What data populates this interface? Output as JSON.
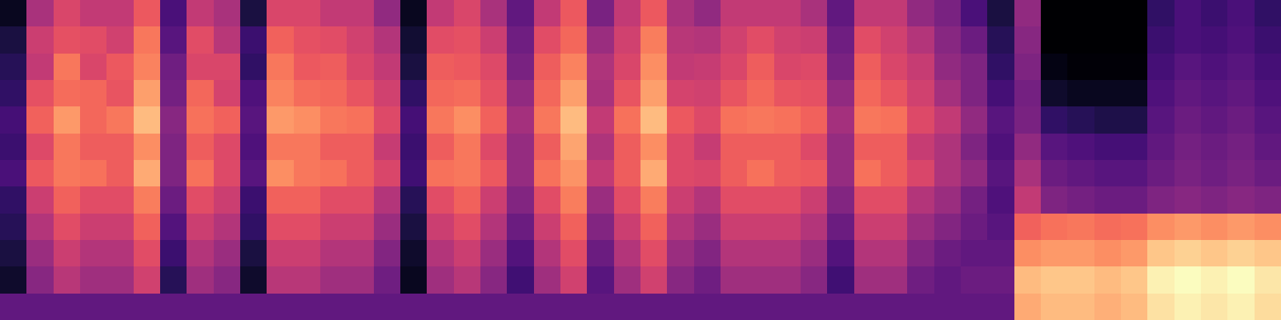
{
  "chart_data": {
    "type": "heatmap",
    "tick_labels": false,
    "cells": [
      [
        0.1,
        0.45,
        0.55,
        0.5,
        0.5,
        0.6,
        0.25,
        0.5,
        0.45,
        0.15,
        0.55,
        0.55,
        0.5,
        0.5,
        0.4,
        0.1,
        0.5,
        0.55,
        0.45,
        0.3,
        0.5,
        0.6,
        0.35,
        0.5,
        0.6,
        0.45,
        0.4,
        0.5,
        0.5,
        0.5,
        0.45,
        0.3,
        0.5,
        0.5,
        0.4,
        0.35,
        0.25,
        0.15,
        0.4,
        0.05,
        0.05,
        0.05,
        0.05,
        0.2,
        0.25,
        0.22,
        0.25,
        0.2
      ],
      [
        0.15,
        0.52,
        0.58,
        0.57,
        0.53,
        0.66,
        0.28,
        0.57,
        0.48,
        0.22,
        0.62,
        0.58,
        0.57,
        0.53,
        0.47,
        0.13,
        0.57,
        0.58,
        0.52,
        0.33,
        0.57,
        0.63,
        0.42,
        0.53,
        0.67,
        0.48,
        0.47,
        0.53,
        0.57,
        0.53,
        0.52,
        0.33,
        0.57,
        0.53,
        0.47,
        0.38,
        0.32,
        0.18,
        0.38,
        0.05,
        0.05,
        0.05,
        0.05,
        0.22,
        0.25,
        0.24,
        0.26,
        0.22
      ],
      [
        0.18,
        0.5,
        0.66,
        0.55,
        0.6,
        0.68,
        0.33,
        0.55,
        0.55,
        0.2,
        0.66,
        0.6,
        0.61,
        0.55,
        0.5,
        0.15,
        0.61,
        0.6,
        0.56,
        0.35,
        0.61,
        0.68,
        0.46,
        0.55,
        0.7,
        0.5,
        0.51,
        0.55,
        0.61,
        0.55,
        0.56,
        0.35,
        0.61,
        0.55,
        0.51,
        0.4,
        0.36,
        0.2,
        0.36,
        0.08,
        0.06,
        0.06,
        0.06,
        0.24,
        0.28,
        0.26,
        0.28,
        0.24
      ],
      [
        0.2,
        0.58,
        0.64,
        0.63,
        0.59,
        0.73,
        0.34,
        0.63,
        0.54,
        0.26,
        0.68,
        0.64,
        0.63,
        0.59,
        0.53,
        0.2,
        0.63,
        0.64,
        0.58,
        0.4,
        0.63,
        0.73,
        0.45,
        0.59,
        0.73,
        0.54,
        0.53,
        0.59,
        0.63,
        0.59,
        0.58,
        0.4,
        0.63,
        0.59,
        0.53,
        0.44,
        0.36,
        0.24,
        0.34,
        0.12,
        0.1,
        0.1,
        0.1,
        0.26,
        0.3,
        0.28,
        0.3,
        0.26
      ],
      [
        0.24,
        0.62,
        0.72,
        0.63,
        0.66,
        0.78,
        0.38,
        0.65,
        0.62,
        0.28,
        0.72,
        0.7,
        0.66,
        0.65,
        0.56,
        0.24,
        0.66,
        0.7,
        0.62,
        0.44,
        0.66,
        0.78,
        0.5,
        0.65,
        0.78,
        0.6,
        0.56,
        0.65,
        0.66,
        0.65,
        0.62,
        0.44,
        0.66,
        0.65,
        0.56,
        0.5,
        0.4,
        0.28,
        0.35,
        0.2,
        0.18,
        0.16,
        0.16,
        0.28,
        0.32,
        0.3,
        0.32,
        0.28
      ],
      [
        0.22,
        0.56,
        0.66,
        0.61,
        0.61,
        0.7,
        0.36,
        0.61,
        0.56,
        0.26,
        0.66,
        0.66,
        0.61,
        0.61,
        0.51,
        0.22,
        0.61,
        0.66,
        0.56,
        0.41,
        0.61,
        0.74,
        0.46,
        0.61,
        0.7,
        0.56,
        0.51,
        0.61,
        0.61,
        0.61,
        0.56,
        0.41,
        0.61,
        0.61,
        0.51,
        0.46,
        0.36,
        0.26,
        0.4,
        0.28,
        0.26,
        0.24,
        0.24,
        0.3,
        0.34,
        0.32,
        0.34,
        0.3
      ],
      [
        0.25,
        0.6,
        0.66,
        0.65,
        0.61,
        0.75,
        0.36,
        0.65,
        0.56,
        0.28,
        0.7,
        0.66,
        0.65,
        0.61,
        0.55,
        0.23,
        0.65,
        0.66,
        0.6,
        0.41,
        0.65,
        0.71,
        0.5,
        0.61,
        0.75,
        0.56,
        0.55,
        0.61,
        0.65,
        0.61,
        0.6,
        0.41,
        0.65,
        0.61,
        0.55,
        0.46,
        0.4,
        0.28,
        0.45,
        0.32,
        0.3,
        0.28,
        0.28,
        0.32,
        0.35,
        0.33,
        0.35,
        0.32
      ],
      [
        0.2,
        0.52,
        0.62,
        0.57,
        0.57,
        0.67,
        0.32,
        0.57,
        0.52,
        0.22,
        0.62,
        0.62,
        0.57,
        0.57,
        0.47,
        0.18,
        0.57,
        0.62,
        0.52,
        0.37,
        0.57,
        0.67,
        0.42,
        0.57,
        0.67,
        0.52,
        0.47,
        0.57,
        0.57,
        0.57,
        0.52,
        0.37,
        0.57,
        0.57,
        0.47,
        0.42,
        0.34,
        0.26,
        0.5,
        0.36,
        0.34,
        0.32,
        0.32,
        0.36,
        0.38,
        0.36,
        0.38,
        0.36
      ],
      [
        0.18,
        0.47,
        0.57,
        0.52,
        0.52,
        0.62,
        0.27,
        0.52,
        0.47,
        0.2,
        0.57,
        0.57,
        0.52,
        0.52,
        0.42,
        0.15,
        0.52,
        0.57,
        0.47,
        0.32,
        0.52,
        0.62,
        0.37,
        0.52,
        0.62,
        0.47,
        0.42,
        0.52,
        0.52,
        0.52,
        0.47,
        0.32,
        0.52,
        0.52,
        0.42,
        0.37,
        0.32,
        0.28,
        0.62,
        0.65,
        0.66,
        0.64,
        0.65,
        0.7,
        0.72,
        0.7,
        0.72,
        0.7
      ],
      [
        0.15,
        0.42,
        0.52,
        0.47,
        0.47,
        0.57,
        0.22,
        0.47,
        0.42,
        0.15,
        0.52,
        0.52,
        0.47,
        0.47,
        0.37,
        0.12,
        0.47,
        0.52,
        0.42,
        0.27,
        0.47,
        0.57,
        0.32,
        0.47,
        0.57,
        0.42,
        0.37,
        0.47,
        0.47,
        0.47,
        0.42,
        0.27,
        0.47,
        0.47,
        0.37,
        0.32,
        0.3,
        0.3,
        0.7,
        0.72,
        0.72,
        0.7,
        0.72,
        0.8,
        0.82,
        0.8,
        0.82,
        0.8
      ],
      [
        0.12,
        0.38,
        0.48,
        0.43,
        0.43,
        0.53,
        0.18,
        0.43,
        0.38,
        0.12,
        0.48,
        0.48,
        0.43,
        0.43,
        0.33,
        0.1,
        0.43,
        0.48,
        0.38,
        0.23,
        0.43,
        0.53,
        0.28,
        0.43,
        0.53,
        0.38,
        0.33,
        0.43,
        0.43,
        0.43,
        0.38,
        0.23,
        0.43,
        0.43,
        0.33,
        0.3,
        0.32,
        0.32,
        0.78,
        0.8,
        0.8,
        0.78,
        0.8,
        0.88,
        0.9,
        0.88,
        0.9,
        0.86
      ],
      [
        0.3,
        0.3,
        0.3,
        0.3,
        0.3,
        0.3,
        0.3,
        0.3,
        0.3,
        0.3,
        0.3,
        0.3,
        0.3,
        0.3,
        0.3,
        0.3,
        0.3,
        0.3,
        0.3,
        0.3,
        0.3,
        0.3,
        0.3,
        0.3,
        0.3,
        0.3,
        0.3,
        0.3,
        0.3,
        0.3,
        0.3,
        0.3,
        0.3,
        0.3,
        0.3,
        0.3,
        0.3,
        0.3,
        0.75,
        0.78,
        0.78,
        0.76,
        0.78,
        0.85,
        0.88,
        0.86,
        0.88,
        0.84
      ]
    ]
  }
}
